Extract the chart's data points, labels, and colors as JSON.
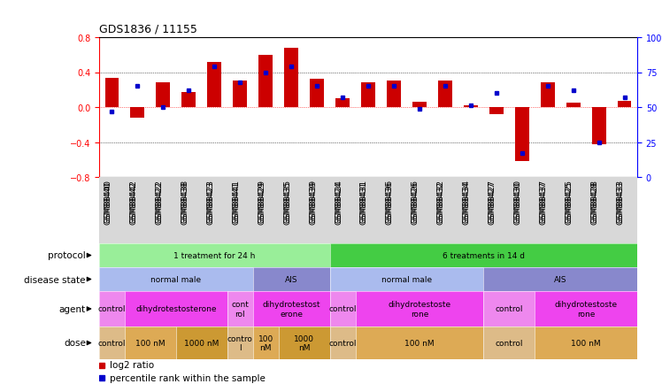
{
  "title": "GDS1836 / 11155",
  "samples": [
    "GSM88440",
    "GSM88442",
    "GSM88422",
    "GSM88438",
    "GSM88423",
    "GSM88441",
    "GSM88429",
    "GSM88435",
    "GSM88439",
    "GSM88424",
    "GSM88431",
    "GSM88436",
    "GSM88426",
    "GSM88432",
    "GSM88434",
    "GSM88427",
    "GSM88430",
    "GSM88437",
    "GSM88425",
    "GSM88428",
    "GSM88433"
  ],
  "log2_ratio": [
    0.33,
    -0.12,
    0.28,
    0.17,
    0.52,
    0.3,
    0.6,
    0.68,
    0.32,
    0.1,
    0.28,
    0.3,
    0.06,
    0.3,
    0.02,
    -0.08,
    -0.62,
    0.28,
    0.05,
    -0.43,
    0.07
  ],
  "percentile": [
    47,
    65,
    50,
    62,
    79,
    68,
    75,
    79,
    65,
    57,
    65,
    65,
    49,
    65,
    51,
    60,
    17,
    65,
    62,
    25,
    57
  ],
  "bar_color": "#cc0000",
  "dot_color": "#0000cc",
  "ylim_left": [
    -0.8,
    0.8
  ],
  "ylim_right": [
    0,
    100
  ],
  "yticks_left": [
    -0.8,
    -0.4,
    0.0,
    0.4,
    0.8
  ],
  "yticks_right": [
    0,
    25,
    50,
    75,
    100
  ],
  "protocol_groups": [
    {
      "label": "1 treatment for 24 h",
      "start": 0,
      "end": 9,
      "color": "#99ee99"
    },
    {
      "label": "6 treatments in 14 d",
      "start": 9,
      "end": 21,
      "color": "#44cc44"
    }
  ],
  "disease_groups": [
    {
      "label": "normal male",
      "start": 0,
      "end": 6,
      "color": "#aabbee"
    },
    {
      "label": "AIS",
      "start": 6,
      "end": 9,
      "color": "#8888cc"
    },
    {
      "label": "normal male",
      "start": 9,
      "end": 15,
      "color": "#aabbee"
    },
    {
      "label": "AIS",
      "start": 15,
      "end": 21,
      "color": "#8888cc"
    }
  ],
  "agent_groups": [
    {
      "label": "control",
      "start": 0,
      "end": 1,
      "color": "#ee88ee"
    },
    {
      "label": "dihydrotestosterone",
      "start": 1,
      "end": 5,
      "color": "#ee44ee"
    },
    {
      "label": "cont\nrol",
      "start": 5,
      "end": 6,
      "color": "#ee88ee"
    },
    {
      "label": "dihydrotestost\nerone",
      "start": 6,
      "end": 9,
      "color": "#ee44ee"
    },
    {
      "label": "control",
      "start": 9,
      "end": 10,
      "color": "#ee88ee"
    },
    {
      "label": "dihydrotestoste\nrone",
      "start": 10,
      "end": 15,
      "color": "#ee44ee"
    },
    {
      "label": "control",
      "start": 15,
      "end": 17,
      "color": "#ee88ee"
    },
    {
      "label": "dihydrotestoste\nrone",
      "start": 17,
      "end": 21,
      "color": "#ee44ee"
    }
  ],
  "dose_groups": [
    {
      "label": "control",
      "start": 0,
      "end": 1,
      "color": "#ddbb88"
    },
    {
      "label": "100 nM",
      "start": 1,
      "end": 3,
      "color": "#ddaa55"
    },
    {
      "label": "1000 nM",
      "start": 3,
      "end": 5,
      "color": "#cc9933"
    },
    {
      "label": "contro\nl",
      "start": 5,
      "end": 6,
      "color": "#ddbb88"
    },
    {
      "label": "100\nnM",
      "start": 6,
      "end": 7,
      "color": "#ddaa55"
    },
    {
      "label": "1000\nnM",
      "start": 7,
      "end": 9,
      "color": "#cc9933"
    },
    {
      "label": "control",
      "start": 9,
      "end": 10,
      "color": "#ddbb88"
    },
    {
      "label": "100 nM",
      "start": 10,
      "end": 15,
      "color": "#ddaa55"
    },
    {
      "label": "control",
      "start": 15,
      "end": 17,
      "color": "#ddbb88"
    },
    {
      "label": "100 nM",
      "start": 17,
      "end": 21,
      "color": "#ddaa55"
    }
  ],
  "row_labels": [
    "protocol",
    "disease state",
    "agent",
    "dose"
  ],
  "legend_items": [
    {
      "label": "log2 ratio",
      "color": "#cc0000"
    },
    {
      "label": "percentile rank within the sample",
      "color": "#0000cc"
    }
  ]
}
